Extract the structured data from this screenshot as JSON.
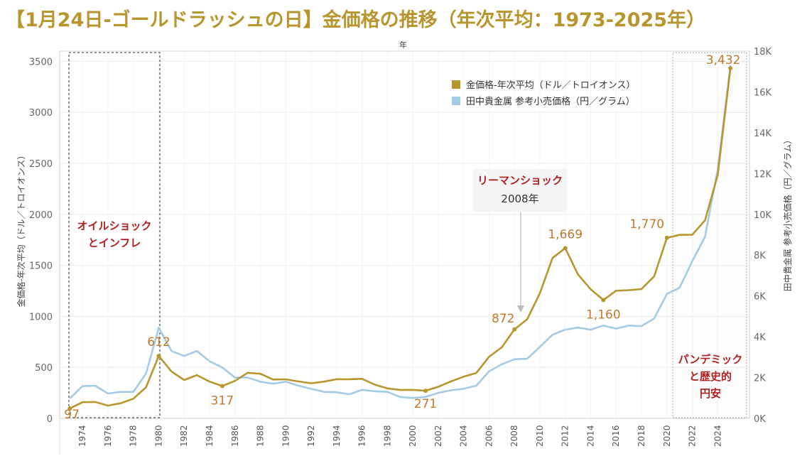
{
  "title": "【1月24日-ゴールドラッシュの日】金価格の推移（年次平均：1973-2025年）",
  "colors": {
    "gold": "#b8962e",
    "blue": "#a3cbe6",
    "title": "#b8962e",
    "annot_red": "#b11f1f",
    "label_gold": "#c07a2a"
  },
  "chart_data": {
    "type": "line",
    "xlabel_top": "年",
    "ylabel_left": "金価格-年次平均（ドル／トロイオンス）",
    "ylabel_right": "田中貴金属 参考小売価格（円／グラム）",
    "ylim_left": [
      0,
      3600
    ],
    "ylim_right": [
      0,
      18000
    ],
    "xlim": [
      1972.2,
      2026.5
    ],
    "x_ticks": [
      1974,
      1976,
      1978,
      1980,
      1982,
      1984,
      1986,
      1988,
      1990,
      1992,
      1994,
      1996,
      1998,
      2000,
      2002,
      2004,
      2006,
      2008,
      2010,
      2012,
      2014,
      2016,
      2018,
      2020,
      2022,
      2024
    ],
    "y_ticks_left": [
      0,
      500,
      1000,
      1500,
      2000,
      2500,
      3000,
      3500
    ],
    "y_ticks_right": [
      0,
      2000,
      4000,
      6000,
      8000,
      10000,
      12000,
      14000,
      16000,
      18000
    ],
    "y_tick_labels_right": [
      "0K",
      "2K",
      "4K",
      "6K",
      "8K",
      "10K",
      "12K",
      "14K",
      "16K",
      "18K"
    ],
    "grid": true,
    "legend_position": "top-right",
    "series": [
      {
        "name": "金価格-年次平均（ドル／トロイオンス）",
        "axis": "left",
        "x": [
          1973,
          1974,
          1975,
          1976,
          1977,
          1978,
          1979,
          1980,
          1981,
          1982,
          1983,
          1984,
          1985,
          1986,
          1987,
          1988,
          1989,
          1990,
          1991,
          1992,
          1993,
          1994,
          1995,
          1996,
          1997,
          1998,
          1999,
          2000,
          2001,
          2002,
          2003,
          2004,
          2005,
          2006,
          2007,
          2008,
          2009,
          2010,
          2011,
          2012,
          2013,
          2014,
          2015,
          2016,
          2017,
          2018,
          2019,
          2020,
          2021,
          2022,
          2023,
          2024,
          2025
        ],
        "values": [
          97,
          159,
          161,
          125,
          148,
          193,
          306,
          612,
          460,
          376,
          424,
          361,
          317,
          368,
          447,
          437,
          381,
          383,
          362,
          344,
          360,
          384,
          384,
          388,
          331,
          294,
          279,
          279,
          271,
          310,
          363,
          409,
          445,
          604,
          696,
          872,
          972,
          1225,
          1572,
          1669,
          1411,
          1266,
          1160,
          1251,
          1257,
          1268,
          1393,
          1770,
          1799,
          1800,
          1941,
          2386,
          3432
        ]
      },
      {
        "name": "田中貴金属 参考小売価格（円／グラム）",
        "axis": "right",
        "x": [
          1973,
          1974,
          1975,
          1976,
          1977,
          1978,
          1979,
          1980,
          1981,
          1982,
          1983,
          1984,
          1985,
          1986,
          1987,
          1988,
          1989,
          1990,
          1991,
          1992,
          1993,
          1994,
          1995,
          1996,
          1997,
          1998,
          1999,
          2000,
          2001,
          2002,
          2003,
          2004,
          2005,
          2006,
          2007,
          2008,
          2009,
          2010,
          2011,
          2012,
          2013,
          2014,
          2015,
          2016,
          2017,
          2018,
          2019,
          2020,
          2021,
          2022,
          2023,
          2024,
          2025
        ],
        "values": [
          980,
          1580,
          1600,
          1220,
          1300,
          1300,
          2200,
          4450,
          3300,
          3060,
          3300,
          2800,
          2500,
          2000,
          2000,
          1800,
          1700,
          1800,
          1600,
          1450,
          1300,
          1280,
          1180,
          1400,
          1330,
          1300,
          1050,
          1000,
          1050,
          1250,
          1380,
          1450,
          1600,
          2300,
          2650,
          2900,
          2920,
          3500,
          4100,
          4350,
          4450,
          4350,
          4550,
          4400,
          4550,
          4520,
          4900,
          6100,
          6400,
          7700,
          8900,
          12200,
          17300
        ]
      }
    ],
    "point_labels": [
      {
        "x": 1973,
        "text": "97"
      },
      {
        "x": 1980,
        "text": "612"
      },
      {
        "x": 1985,
        "text": "317"
      },
      {
        "x": 2001,
        "text": "271"
      },
      {
        "x": 2008,
        "text": "872"
      },
      {
        "x": 2012,
        "text": "1,669"
      },
      {
        "x": 2015,
        "text": "1,160"
      },
      {
        "x": 2020,
        "text": "1,770"
      },
      {
        "x": 2025,
        "text": "3,432"
      }
    ]
  },
  "annotations": {
    "oil_shock": {
      "line1": "オイルショック",
      "line2": "とインフレ"
    },
    "lehman": {
      "line1": "リーマンショック",
      "line2": "2008年"
    },
    "pandemic": {
      "line1": "パンデミック",
      "line2": "と歴史的",
      "line3": "円安"
    }
  }
}
